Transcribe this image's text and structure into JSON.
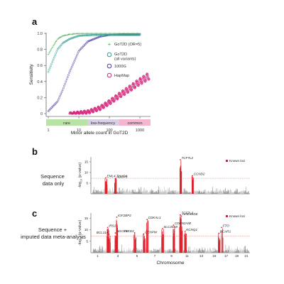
{
  "figure": {
    "panel_a": {
      "label": "a",
      "ylabel": "Sensitivity",
      "xlabel": "Minor allele count in GoT2D",
      "y_ticks": [
        "0",
        "0.2",
        "0.4",
        "0.6",
        "0.8",
        "1.0"
      ],
      "x_ticks": [
        "1",
        "10",
        "100",
        "1000"
      ],
      "bands": [
        {
          "label": "rare",
          "color": "#b9e3a4"
        },
        {
          "label": "low-frequency",
          "color": "#d7cfe6"
        },
        {
          "label": "common",
          "color": "#f4b6cf"
        }
      ],
      "legend": [
        {
          "label": "GoT2D (OR=5)",
          "marker": "plus",
          "color": "#4daa57"
        },
        {
          "label": "GoT2D (all variants)",
          "marker": "circle",
          "color": "#2e9e8e"
        },
        {
          "label": "1000G",
          "marker": "circle",
          "color": "#4b3fa0"
        },
        {
          "label": "HapMap",
          "marker": "circle",
          "color": "#d6237a"
        }
      ]
    },
    "panel_b": {
      "label": "b",
      "side_label": "Sequence data only",
      "ylabel": "-log10 (p-value)",
      "y_ticks": [
        "5",
        "10",
        "15"
      ],
      "legend": "Known loci",
      "genes": [
        "EML4-THADA",
        "ADCY5",
        "TCF7L2",
        "CCND2"
      ]
    },
    "panel_c": {
      "label": "c",
      "side_label": "Sequence + imputed data meta-analysis",
      "ylabel": "-log10 (p-value)",
      "y_ticks": [
        "5",
        "10",
        "15"
      ],
      "legend": "Known loci",
      "xlabel": "Chromosome",
      "chromosomes": [
        "1",
        "2",
        "3",
        "4",
        "5",
        "6",
        "7",
        "8",
        "9",
        "10",
        "11",
        "12",
        "13",
        "14",
        "15",
        "16",
        "17",
        "18",
        "19",
        "20",
        "21"
      ],
      "genes": [
        "IGF2BP2",
        "CDKAL1",
        "HHEX/IDE",
        "TCF7L2",
        "IRS1",
        "BCL11A",
        "ADCY5",
        "ZBED3",
        "CENPW",
        "SLC30A8",
        "CDKN2A/B",
        "KCNQ1",
        "FTO",
        "BCAR1"
      ]
    }
  },
  "colors": {
    "known_loci": "#e0202a",
    "manhattan_odd": "#9a9a9a",
    "manhattan_even": "#c3c3c3",
    "threshold": "#e05050"
  },
  "chart_data": [
    {
      "type": "scatter",
      "xscale": "log",
      "xlim": [
        1,
        2000
      ],
      "ylim": [
        0,
        1
      ],
      "series": [
        {
          "name": "GoT2D (OR=5)",
          "x": [
            1,
            2,
            3,
            5,
            10,
            30,
            100,
            1000
          ],
          "y": [
            0.74,
            0.93,
            0.97,
            0.99,
            1.0,
            1.0,
            1.0,
            1.0
          ]
        },
        {
          "name": "GoT2D (all variants)",
          "x": [
            1,
            2,
            3,
            5,
            10,
            30,
            100,
            1000
          ],
          "y": [
            0.52,
            0.8,
            0.88,
            0.93,
            0.97,
            0.98,
            0.98,
            0.98
          ]
        },
        {
          "name": "1000G",
          "x": [
            1,
            2,
            3,
            5,
            10,
            20,
            50,
            100,
            1000
          ],
          "y": [
            0.03,
            0.15,
            0.3,
            0.52,
            0.78,
            0.9,
            0.96,
            0.98,
            0.99
          ]
        },
        {
          "name": "HapMap",
          "x": [
            5,
            10,
            20,
            50,
            100,
            200,
            500,
            1000,
            2000
          ],
          "y": [
            0.0,
            0.01,
            0.02,
            0.07,
            0.14,
            0.22,
            0.32,
            0.4,
            0.47
          ]
        }
      ]
    },
    {
      "type": "scatter",
      "subtype": "manhattan",
      "x": "Chromosome",
      "ylim": [
        0,
        17
      ],
      "threshold": 7.3,
      "peaks": [
        {
          "chrom": "2",
          "gene": "EML4-THADA",
          "y": 7.5
        },
        {
          "chrom": "3",
          "gene": "ADCY5",
          "y": 7.2
        },
        {
          "chrom": "10",
          "gene": "TCF7L2",
          "y": 16
        },
        {
          "chrom": "12",
          "gene": "CCND2",
          "y": 8.5
        }
      ]
    },
    {
      "type": "scatter",
      "subtype": "manhattan",
      "x": "Chromosome",
      "ylim": [
        0,
        17
      ],
      "threshold": 7.3,
      "peaks": [
        {
          "chrom": "2",
          "gene": "IRS1",
          "y": 11
        },
        {
          "chrom": "2",
          "gene": "BCL11A",
          "y": 8
        },
        {
          "chrom": "3",
          "gene": "ADCY5",
          "y": 8.6
        },
        {
          "chrom": "3",
          "gene": "IGF2BP2",
          "y": 15.5
        },
        {
          "chrom": "5",
          "gene": "ZBED3",
          "y": 8.7
        },
        {
          "chrom": "6",
          "gene": "CDKAL1",
          "y": 14.5
        },
        {
          "chrom": "6",
          "gene": "CENPW",
          "y": 8.2
        },
        {
          "chrom": "8",
          "gene": "SLC30A8",
          "y": 10.5
        },
        {
          "chrom": "9",
          "gene": "CDKN2A/B",
          "y": 12
        },
        {
          "chrom": "10",
          "gene": "HHEX/IDE",
          "y": 16
        },
        {
          "chrom": "10",
          "gene": "TCF7L2",
          "y": 16.5
        },
        {
          "chrom": "11",
          "gene": "KCNQ1",
          "y": 9.3
        },
        {
          "chrom": "16",
          "gene": "FTO",
          "y": 11
        },
        {
          "chrom": "16",
          "gene": "BCAR1",
          "y": 8.5
        }
      ]
    }
  ]
}
